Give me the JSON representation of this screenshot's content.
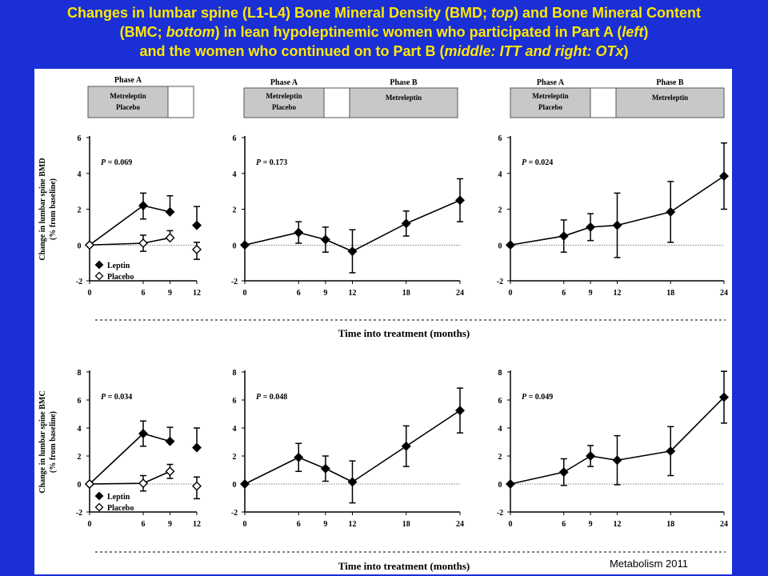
{
  "title": {
    "line1_a": "Changes in lumbar spine (L1-L4) Bone Mineral Density (BMD; ",
    "line1_b": "top",
    "line1_c": ") and Bone Mineral Content",
    "line2_a": "(BMC; ",
    "line2_b": "bottom",
    "line2_c": ") in lean hypoleptinemic women who participated in Part A (",
    "line2_d": "left",
    "line2_e": ")",
    "line3_a": "and the women who continued on to Part B (",
    "line3_b": "middle: ITT and right: OTx",
    "line3_c": ")"
  },
  "source": "Metabolism 2011",
  "phase_labels": {
    "phase_a": "Phase A",
    "phase_b": "Phase B",
    "metreleptin": "Metreleptin",
    "placebo": "Placebo"
  },
  "shared_xlabel": "Time into treatment (months)",
  "chart_data": [
    {
      "type": "line",
      "id": "bmd-part-a",
      "ylabel": [
        "Change in lumbar spine BMD",
        "(% from baseline)"
      ],
      "x_ticks": [
        0,
        6,
        9,
        12
      ],
      "xlim": [
        0,
        12
      ],
      "ylim": [
        -2,
        6
      ],
      "y_ticks": [
        -2,
        0,
        2,
        4,
        6
      ],
      "p_label": "P",
      "p_value": "= 0.069",
      "legend": [
        "Leptin",
        "Placebo"
      ],
      "series": [
        {
          "name": "Leptin",
          "marker": "filled-diamond",
          "x": [
            0,
            6,
            9,
            12
          ],
          "y": [
            0,
            2.2,
            1.85,
            1.1
          ],
          "err_hi": [
            0,
            0.7,
            0.9,
            1.05
          ],
          "err_lo": [
            0,
            0.75,
            0.0,
            0.0
          ],
          "connect": [
            true,
            true,
            false
          ]
        },
        {
          "name": "Placebo",
          "marker": "open-diamond",
          "x": [
            0,
            6,
            9,
            12
          ],
          "y": [
            0,
            0.1,
            0.4,
            -0.25
          ],
          "err_hi": [
            0,
            0.45,
            0.4,
            0.4
          ],
          "err_lo": [
            0,
            0.45,
            0.0,
            0.55
          ],
          "connect": [
            true,
            true,
            false
          ]
        }
      ]
    },
    {
      "type": "line",
      "id": "bmd-itt",
      "x_ticks": [
        0,
        6,
        9,
        12,
        18,
        24
      ],
      "xlim": [
        0,
        24
      ],
      "ylim": [
        -2,
        6
      ],
      "y_ticks": [
        -2,
        0,
        2,
        4,
        6
      ],
      "p_label": "P",
      "p_value": "= 0.173",
      "series": [
        {
          "name": "",
          "marker": "filled-diamond",
          "x": [
            0,
            6,
            9,
            12,
            18,
            24
          ],
          "y": [
            0,
            0.7,
            0.3,
            -0.35,
            1.2,
            2.5
          ],
          "err_hi": [
            0,
            0.6,
            0.7,
            1.2,
            0.7,
            1.2
          ],
          "err_lo": [
            0,
            0.6,
            0.7,
            1.2,
            0.7,
            1.2
          ]
        }
      ]
    },
    {
      "type": "line",
      "id": "bmd-otx",
      "x_ticks": [
        0,
        6,
        9,
        12,
        18,
        24
      ],
      "xlim": [
        0,
        24
      ],
      "ylim": [
        -2,
        6
      ],
      "y_ticks": [
        -2,
        0,
        2,
        4,
        6
      ],
      "p_label": "P",
      "p_value": "= 0.024",
      "series": [
        {
          "name": "",
          "marker": "filled-diamond",
          "x": [
            0,
            6,
            9,
            12,
            18,
            24
          ],
          "y": [
            0,
            0.5,
            1.0,
            1.1,
            1.85,
            3.85
          ],
          "err_hi": [
            0,
            0.9,
            0.75,
            1.8,
            1.7,
            1.85
          ],
          "err_lo": [
            0,
            0.9,
            0.75,
            1.8,
            1.7,
            1.85
          ]
        }
      ]
    },
    {
      "type": "line",
      "id": "bmc-part-a",
      "ylabel": [
        "Change in lumbar spine BMC",
        "(% from baseline)"
      ],
      "x_ticks": [
        0,
        6,
        9,
        12
      ],
      "xlim": [
        0,
        12
      ],
      "ylim": [
        -2,
        8
      ],
      "y_ticks": [
        -2,
        0,
        2,
        4,
        6,
        8
      ],
      "p_label": "P",
      "p_value": "= 0.034",
      "legend": [
        "Leptin",
        "Placebo"
      ],
      "series": [
        {
          "name": "Leptin",
          "marker": "filled-diamond",
          "x": [
            0,
            6,
            9,
            12
          ],
          "y": [
            0,
            3.6,
            3.05,
            2.6
          ],
          "err_hi": [
            0,
            0.9,
            1.0,
            1.4
          ],
          "err_lo": [
            0,
            0.9,
            0.0,
            0.0
          ],
          "connect": [
            true,
            true,
            false
          ]
        },
        {
          "name": "Placebo",
          "marker": "open-diamond",
          "x": [
            0,
            6,
            9,
            12
          ],
          "y": [
            0,
            0.05,
            0.9,
            -0.15
          ],
          "err_hi": [
            0,
            0.55,
            0.5,
            0.65
          ],
          "err_lo": [
            0,
            0.55,
            0.5,
            0.9
          ],
          "connect": [
            true,
            true,
            false
          ]
        }
      ]
    },
    {
      "type": "line",
      "id": "bmc-itt",
      "x_ticks": [
        0,
        6,
        9,
        12,
        18,
        24
      ],
      "xlim": [
        0,
        24
      ],
      "ylim": [
        -2,
        8
      ],
      "y_ticks": [
        -2,
        0,
        2,
        4,
        6,
        8
      ],
      "p_label": "P",
      "p_value": "= 0.048",
      "series": [
        {
          "name": "",
          "marker": "filled-diamond",
          "x": [
            0,
            6,
            9,
            12,
            18,
            24
          ],
          "y": [
            0,
            1.9,
            1.1,
            0.15,
            2.7,
            5.25
          ],
          "err_hi": [
            0,
            1.0,
            0.9,
            1.5,
            1.45,
            1.6
          ],
          "err_lo": [
            0,
            1.0,
            0.9,
            1.5,
            1.45,
            1.6
          ]
        }
      ]
    },
    {
      "type": "line",
      "id": "bmc-otx",
      "x_ticks": [
        0,
        6,
        9,
        12,
        18,
        24
      ],
      "xlim": [
        0,
        24
      ],
      "ylim": [
        -2,
        8
      ],
      "y_ticks": [
        -2,
        0,
        2,
        4,
        6,
        8
      ],
      "p_label": "P",
      "p_value": "= 0.049",
      "series": [
        {
          "name": "",
          "marker": "filled-diamond",
          "x": [
            0,
            6,
            9,
            12,
            18,
            24
          ],
          "y": [
            0,
            0.85,
            2.0,
            1.7,
            2.35,
            6.2
          ],
          "err_hi": [
            0,
            0.95,
            0.75,
            1.75,
            1.75,
            1.85
          ],
          "err_lo": [
            0,
            0.95,
            0.75,
            1.75,
            1.75,
            1.85
          ]
        }
      ]
    }
  ]
}
